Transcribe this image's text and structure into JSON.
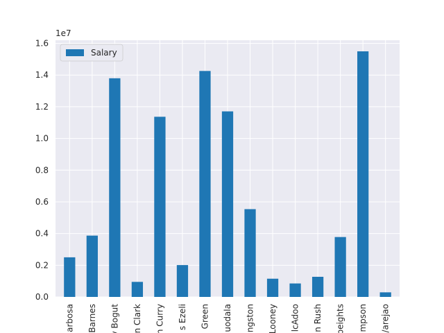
{
  "chart_data": {
    "type": "bar",
    "categories": [
      "arbosa",
      "Barnes",
      "v Bogut",
      "n Clark",
      "n Curry",
      "s Ezeli",
      "Green",
      "uodala",
      "ngston",
      "Looney",
      "lcAdoo",
      "n Rush",
      "peights",
      "mpson",
      "/arejao"
    ],
    "series": [
      {
        "name": "Salary",
        "values": [
          2500000,
          3870000,
          13800000,
          950000,
          11370000,
          2010000,
          14260000,
          11710000,
          5540000,
          1150000,
          850000,
          1270000,
          3780000,
          15500000,
          290000
        ],
        "color": "#1f77b4"
      }
    ],
    "title": "",
    "xlabel": "",
    "ylabel": "",
    "ylim": [
      0,
      16200000
    ],
    "yticks": [
      "0.0",
      "0.2",
      "0.4",
      "0.6",
      "0.8",
      "1.0",
      "1.2",
      "1.4",
      "1.6"
    ],
    "ytick_values": [
      0,
      2000000,
      4000000,
      6000000,
      8000000,
      10000000,
      12000000,
      14000000,
      16000000
    ],
    "offset_label": "1e7",
    "grid": true,
    "legend_position": "top-left",
    "background_color": "#eaeaf2",
    "grid_color": "#ffffff"
  }
}
